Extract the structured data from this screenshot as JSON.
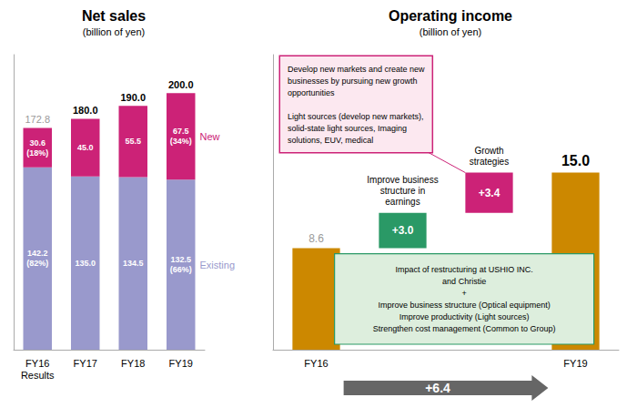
{
  "chart_data": [
    {
      "type": "bar",
      "title": "Net sales",
      "subtitle": "(billion of yen)",
      "categories": [
        "FY16\nResults",
        "FY17",
        "FY18",
        "FY19"
      ],
      "stacked": true,
      "series": [
        {
          "name": "Existing",
          "color": "#9999cc",
          "values": [
            142.2,
            135.0,
            134.5,
            132.5
          ],
          "value_labels": [
            "142.2\n(82%)",
            "135.0",
            "134.5",
            "132.5\n(66%)"
          ]
        },
        {
          "name": "New",
          "color": "#cc2277",
          "values": [
            30.6,
            45.0,
            55.5,
            67.5
          ],
          "value_labels": [
            "30.6\n(18%)",
            "45.0",
            "55.5",
            "67.5\n(34%)"
          ]
        }
      ],
      "totals": [
        172.8,
        180.0,
        190.0,
        200.0
      ],
      "total_labels": [
        "172.8",
        "180.0",
        "190.0",
        "200.0"
      ],
      "ylim": [
        0,
        230
      ],
      "yticks": [],
      "data_labels": true,
      "tick_labels": "x",
      "grid": false
    },
    {
      "type": "waterfall",
      "title": "Operating income",
      "subtitle": "(billion of yen)",
      "categories": [
        "FY16",
        null,
        null,
        "FY19"
      ],
      "values": [
        8.6,
        3.0,
        3.4,
        15.0
      ],
      "value_labels": [
        "8.6",
        "+3.0",
        "+3.4",
        "15.0"
      ],
      "colors": [
        "#cc8800",
        "#2a9966",
        "#cc2277",
        "#cc8800"
      ],
      "ylim": [
        0,
        25
      ],
      "yticks": [],
      "data_labels": true,
      "tick_labels": "x",
      "grid": false,
      "annotations": [
        {
          "text": "+6.4",
          "color": "#666666"
        },
        {
          "text": "Improve business\nstructure in\nearnings"
        },
        {
          "text": "Growth\nstrategies"
        },
        {
          "text": "Impact of restructuring at USHIO INC.\nand Christie\n+\nImprove business structure (Optical equipment)\nImprove productivity (Light sources)\nStrengthen cost management (Common to Group)",
          "color": "#ddeedd"
        },
        {
          "text": "Develop new markets and create new\nbusinesses by pursuing new growth\nopportunities\n\nLight sources (develop new markets),\nsolid-state light sources, Imaging\nsolutions, EUV, medical",
          "color": "#fce8f0"
        }
      ]
    }
  ]
}
